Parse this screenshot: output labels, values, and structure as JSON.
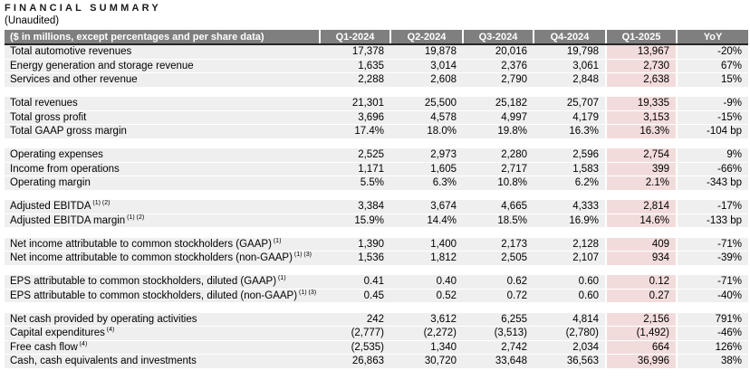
{
  "title": "FINANCIAL SUMMARY",
  "subtitle": "(Unaudited)",
  "colors": {
    "header_bg": "#7f7f7f",
    "header_text": "#ffffff",
    "row_bg": "#efefef",
    "highlight_bg": "#f2dcdb",
    "header_rule": "#262626"
  },
  "table": {
    "corner_label": "($ in millions, except percentages and per share data)",
    "columns": [
      "Q1-2024",
      "Q2-2024",
      "Q3-2024",
      "Q4-2024",
      "Q1-2025",
      "YoY"
    ],
    "highlight_column": "Q1-2025",
    "sections": [
      {
        "rows": [
          {
            "label": "Total automotive revenues",
            "sup": "",
            "values": [
              "17,378",
              "19,878",
              "20,016",
              "19,798",
              "13,967",
              "-20%"
            ]
          },
          {
            "label": "Energy generation and storage revenue",
            "sup": "",
            "values": [
              "1,635",
              "3,014",
              "2,376",
              "3,061",
              "2,730",
              "67%"
            ]
          },
          {
            "label": "Services and other revenue",
            "sup": "",
            "values": [
              "2,288",
              "2,608",
              "2,790",
              "2,848",
              "2,638",
              "15%"
            ]
          }
        ]
      },
      {
        "rows": [
          {
            "label": "Total revenues",
            "sup": "",
            "values": [
              "21,301",
              "25,500",
              "25,182",
              "25,707",
              "19,335",
              "-9%"
            ]
          },
          {
            "label": "Total gross profit",
            "sup": "",
            "values": [
              "3,696",
              "4,578",
              "4,997",
              "4,179",
              "3,153",
              "-15%"
            ]
          },
          {
            "label": "Total GAAP gross margin",
            "sup": "",
            "values": [
              "17.4%",
              "18.0%",
              "19.8%",
              "16.3%",
              "16.3%",
              "-104 bp"
            ]
          }
        ]
      },
      {
        "rows": [
          {
            "label": "Operating expenses",
            "sup": "",
            "values": [
              "2,525",
              "2,973",
              "2,280",
              "2,596",
              "2,754",
              "9%"
            ]
          },
          {
            "label": "Income from operations",
            "sup": "",
            "values": [
              "1,171",
              "1,605",
              "2,717",
              "1,583",
              "399",
              "-66%"
            ]
          },
          {
            "label": "Operating margin",
            "sup": "",
            "values": [
              "5.5%",
              "6.3%",
              "10.8%",
              "6.2%",
              "2.1%",
              "-343 bp"
            ]
          }
        ]
      },
      {
        "rows": [
          {
            "label": "Adjusted EBITDA",
            "sup": "(1) (2)",
            "values": [
              "3,384",
              "3,674",
              "4,665",
              "4,333",
              "2,814",
              "-17%"
            ]
          },
          {
            "label": "Adjusted EBITDA margin",
            "sup": "(1) (2)",
            "values": [
              "15.9%",
              "14.4%",
              "18.5%",
              "16.9%",
              "14.6%",
              "-133 bp"
            ]
          }
        ]
      },
      {
        "rows": [
          {
            "label": "Net income attributable to common stockholders (GAAP)",
            "sup": "(1)",
            "values": [
              "1,390",
              "1,400",
              "2,173",
              "2,128",
              "409",
              "-71%"
            ]
          },
          {
            "label": "Net income attributable to common stockholders (non-GAAP)",
            "sup": "(1) (3)",
            "values": [
              "1,536",
              "1,812",
              "2,505",
              "2,107",
              "934",
              "-39%"
            ]
          }
        ]
      },
      {
        "rows": [
          {
            "label": "EPS attributable to common stockholders, diluted (GAAP)",
            "sup": "(1)",
            "values": [
              "0.41",
              "0.40",
              "0.62",
              "0.60",
              "0.12",
              "-71%"
            ]
          },
          {
            "label": "EPS attributable to common stockholders, diluted (non-GAAP)",
            "sup": "(1) (3)",
            "values": [
              "0.45",
              "0.52",
              "0.72",
              "0.60",
              "0.27",
              "-40%"
            ]
          }
        ]
      },
      {
        "rows": [
          {
            "label": "Net cash provided by operating activities",
            "sup": "",
            "values": [
              "242",
              "3,612",
              "6,255",
              "4,814",
              "2,156",
              "791%"
            ]
          },
          {
            "label": "Capital expenditures",
            "sup": "(4)",
            "values": [
              "(2,777)",
              "(2,272)",
              "(3,513)",
              "(2,780)",
              "(1,492)",
              "-46%"
            ]
          },
          {
            "label": "Free cash flow",
            "sup": "(4)",
            "values": [
              "(2,535)",
              "1,340",
              "2,742",
              "2,034",
              "664",
              "126%"
            ]
          },
          {
            "label": "Cash, cash equivalents and investments",
            "sup": "",
            "values": [
              "26,863",
              "30,720",
              "33,648",
              "36,563",
              "36,996",
              "38%"
            ]
          }
        ]
      }
    ]
  }
}
